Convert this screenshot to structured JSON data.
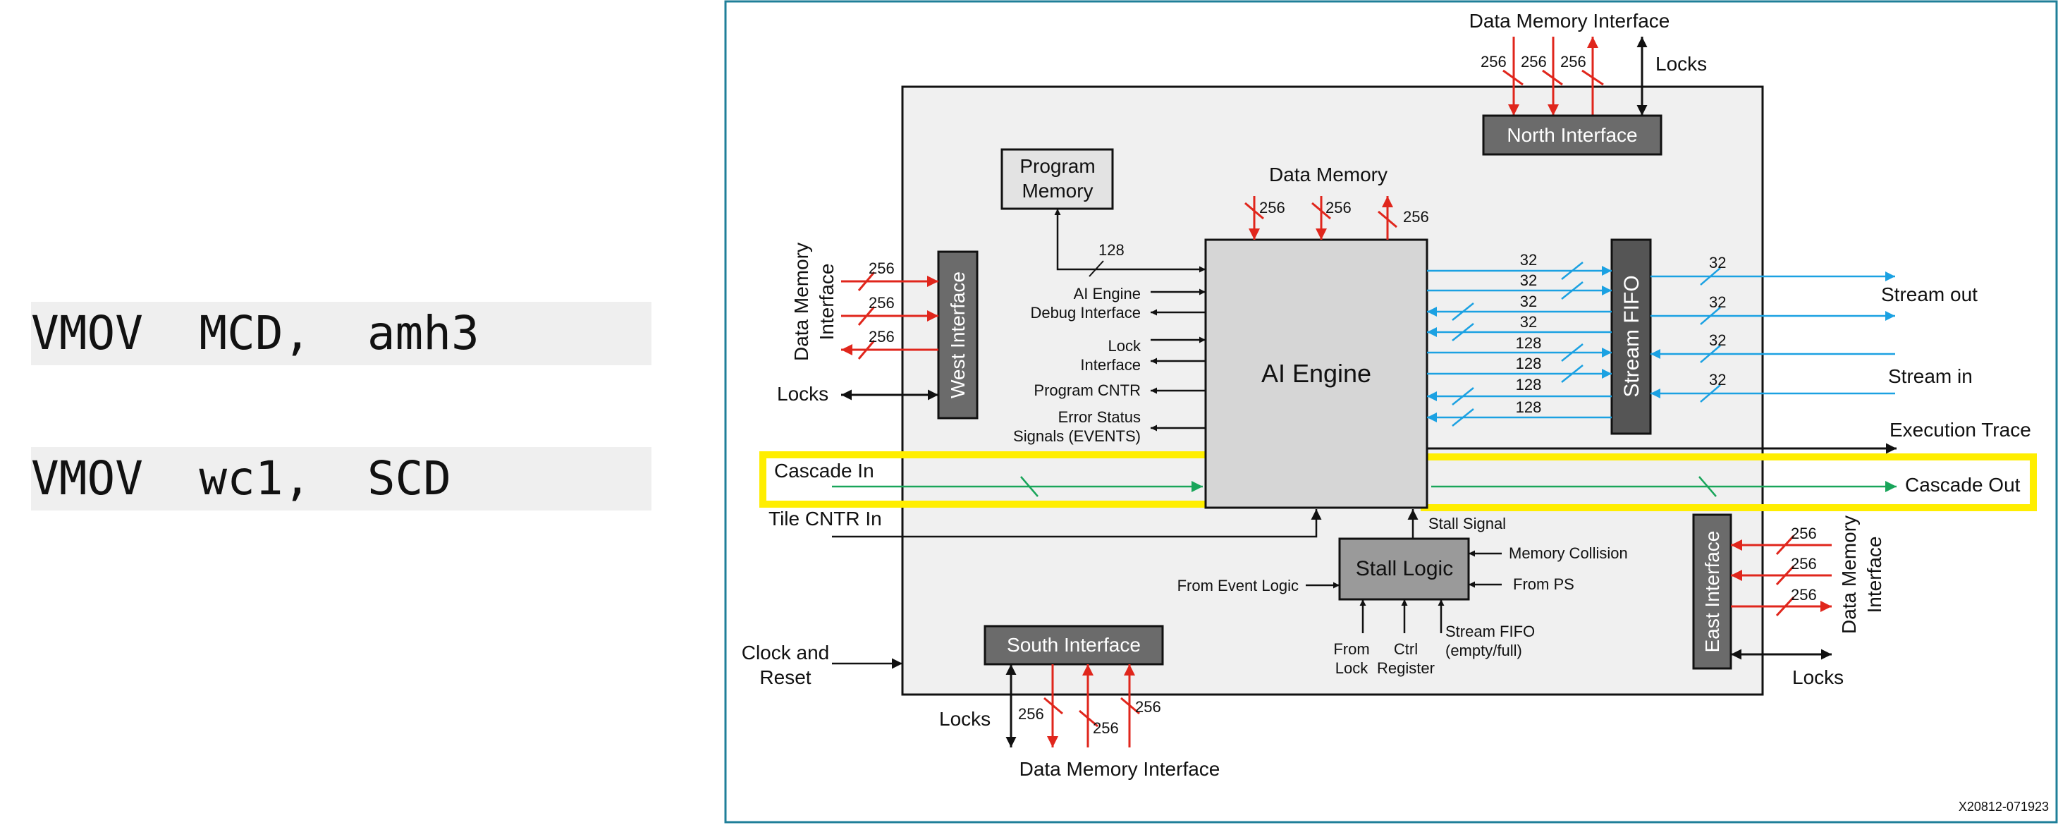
{
  "code": {
    "line1": "VMOV  MCD,  amh3",
    "line2": "VMOV  wc1,  SCD"
  },
  "diagram": {
    "blocks": {
      "ai_engine": "AI Engine",
      "program_memory": [
        "Program",
        "Memory"
      ],
      "north_interface": "North Interface",
      "west_interface": "West Interface",
      "south_interface": "South Interface",
      "east_interface": "East Interface",
      "stream_fifo": "Stream FIFO",
      "stall_logic": "Stall Logic"
    },
    "labels": {
      "data_memory_top": "Data Memory Interface",
      "data_memory_inner": "Data Memory",
      "data_memory_bottom": "Data Memory Interface",
      "data_memory_west": [
        "Data Memory",
        "Interface"
      ],
      "data_memory_east": [
        "Data Memory",
        "Interface"
      ],
      "locks": "Locks",
      "ai_debug": [
        "AI Engine",
        "Debug Interface"
      ],
      "lock_interface": [
        "Lock",
        "Interface"
      ],
      "program_cntr": "Program CNTR",
      "error_status": [
        "Error Status",
        "Signals (EVENTS)"
      ],
      "cascade_in": "Cascade In",
      "cascade_out": "Cascade Out",
      "tile_cntr_in": "Tile CNTR In",
      "stall_signal": "Stall Signal",
      "memory_collision": "Memory Collision",
      "from_ps": "From PS",
      "from_event_logic": "From Event Logic",
      "from_lock": [
        "From",
        "Lock"
      ],
      "ctrl_register": [
        "Ctrl",
        "Register"
      ],
      "stream_fifo_status": [
        "Stream FIFO",
        "(empty/full)"
      ],
      "clock_reset": [
        "Clock and",
        "Reset"
      ],
      "stream_out": "Stream out",
      "stream_in": "Stream in",
      "execution_trace": "Execution Trace",
      "figure_id": "X20812-071923"
    },
    "bus_widths": {
      "w256": "256",
      "w128": "128",
      "w32": "32"
    },
    "colors": {
      "red_arrow": "#e0261c",
      "blue_arrow": "#1ba1e2",
      "green_arrow": "#19a55a",
      "highlight": "#ffee00",
      "tile_fill": "#f0f0f0",
      "engine_fill": "#d6d6d6",
      "dark_block": "#6b6b6b",
      "frame_border": "#1f7f99"
    }
  }
}
